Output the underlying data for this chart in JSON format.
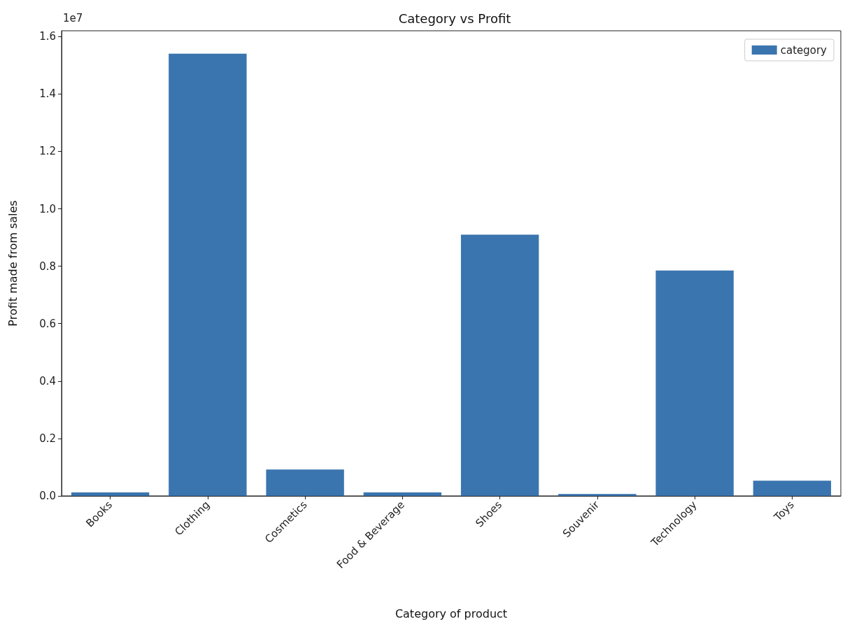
{
  "chart_data": {
    "type": "bar",
    "title": "Category vs Profit",
    "xlabel": "Category of product",
    "ylabel": "Profit made from sales",
    "categories": [
      "Books",
      "Clothing",
      "Cosmetics",
      "Food & Beverage",
      "Shoes",
      "Souvenir",
      "Technology",
      "Toys"
    ],
    "series": [
      {
        "name": "category",
        "color": "#3b75af",
        "values": [
          0.012,
          1.54,
          0.092,
          0.012,
          0.91,
          0.007,
          0.785,
          0.053
        ]
      }
    ],
    "ylim": [
      0,
      1.62
    ],
    "yticks": [
      {
        "value": 0,
        "label": "0.0"
      },
      0.2,
      0.4,
      0.6,
      0.8,
      {
        "value": 1,
        "label": "1.0"
      },
      1.2,
      1.4,
      1.6
    ],
    "annotations": [
      "1e7"
    ],
    "legend": "top right",
    "grid": false
  }
}
